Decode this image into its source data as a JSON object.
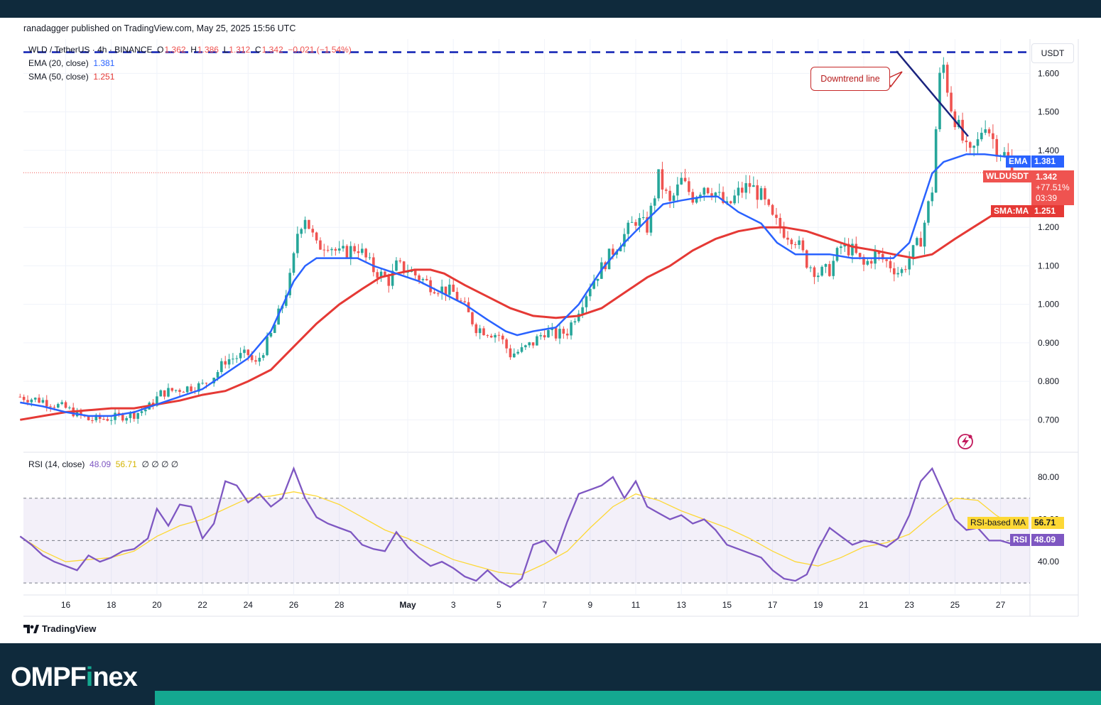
{
  "meta": {
    "published": "ranadagger published on TradingView.com, May 25, 2025 15:56 UTC",
    "brand_left": "OMPF",
    "brand_accent": "i",
    "brand_right": "nex",
    "tv_label": "TradingView"
  },
  "legend": {
    "symbol": "WLD / TetherUS · 4h · BINANCE",
    "o_label": "O",
    "o_val": "1.362",
    "h_label": "H",
    "h_val": "1.386",
    "l_label": "L",
    "l_val": "1.312",
    "c_label": "C",
    "c_val": "1.342",
    "change": "−0.021 (−1.54%)",
    "ema_label": "EMA (20, close)",
    "ema_val": "1.381",
    "sma_label": "SMA (50, close)",
    "sma_val": "1.251",
    "rsi_label": "RSI (14, close)",
    "rsi_val": "48.09",
    "rsi_ma_val": "56.71",
    "rsi_extra": "∅ ∅ ∅ ∅"
  },
  "annotation": {
    "downtrend": "Downtrend line"
  },
  "tags": {
    "currency": "USDT",
    "ema_tag": "EMA",
    "ema_value": "1.381",
    "price_tag": "WLDUSDT",
    "price_value": "1.342",
    "price_change": "+77.51%",
    "countdown": "03:39",
    "sma_tag": "SMA:MA",
    "sma_value": "1.251",
    "rsi_ma_tag": "RSI-based MA",
    "rsi_ma_value": "56.71",
    "rsi_tag": "RSI",
    "rsi_value": "48.09"
  },
  "colors": {
    "up": "#26a69a",
    "down": "#ef5350",
    "ema": "#2962ff",
    "sma": "#e53935",
    "rsi": "#7e57c2",
    "rsi_ma": "#fdd835",
    "resistance": "#0d1fb3",
    "trend": "#1a237e"
  },
  "chart_data": [
    {
      "type": "candlestick",
      "x_ticks": [
        "16",
        "18",
        "20",
        "22",
        "24",
        "26",
        "28",
        "May",
        "3",
        "5",
        "7",
        "9",
        "11",
        "13",
        "15",
        "17",
        "19",
        "21",
        "23",
        "25",
        "27"
      ],
      "y_ticks": [
        "1.600",
        "1.500",
        "1.400",
        "1.200",
        "1.100",
        "1.000",
        "0.900",
        "0.800",
        "0.700"
      ],
      "ylim": [
        0.625,
        1.68
      ],
      "resistance_level": 1.655,
      "current_price": 1.342,
      "price_path": [
        [
          14,
          0.76
        ],
        [
          15,
          0.75
        ],
        [
          16,
          0.73
        ],
        [
          16.5,
          0.715
        ],
        [
          17,
          0.7
        ],
        [
          18,
          0.705
        ],
        [
          18.5,
          0.71
        ],
        [
          19,
          0.715
        ],
        [
          19.6,
          0.73
        ],
        [
          20.2,
          0.77
        ],
        [
          21,
          0.78
        ],
        [
          22,
          0.79
        ],
        [
          22.6,
          0.82
        ],
        [
          23,
          0.855
        ],
        [
          24,
          0.87
        ],
        [
          24.3,
          0.84
        ],
        [
          25,
          0.92
        ],
        [
          25.5,
          1.0
        ],
        [
          25.9,
          1.08
        ],
        [
          26.2,
          1.2
        ],
        [
          26.5,
          1.23
        ],
        [
          27,
          1.15
        ],
        [
          27.5,
          1.16
        ],
        [
          28,
          1.13
        ],
        [
          28.8,
          1.15
        ],
        [
          29.5,
          1.09
        ],
        [
          30.2,
          1.06
        ],
        [
          30.5,
          1.1
        ],
        [
          31,
          1.09
        ],
        [
          32,
          1.05
        ],
        [
          33,
          1.03
        ],
        [
          33.5,
          0.99
        ],
        [
          34,
          0.94
        ],
        [
          35,
          0.92
        ],
        [
          35.5,
          0.87
        ],
        [
          36,
          0.88
        ],
        [
          36.5,
          0.9
        ],
        [
          37,
          0.93
        ],
        [
          37.5,
          0.92
        ],
        [
          38,
          0.93
        ],
        [
          39,
          1.05
        ],
        [
          40,
          1.14
        ],
        [
          41,
          1.22
        ],
        [
          41.5,
          1.2
        ],
        [
          42,
          1.33
        ],
        [
          42.5,
          1.26
        ],
        [
          43,
          1.32
        ],
        [
          43.5,
          1.28
        ],
        [
          44,
          1.31
        ],
        [
          44.5,
          1.29
        ],
        [
          45,
          1.25
        ],
        [
          45.5,
          1.29
        ],
        [
          46,
          1.31
        ],
        [
          46.5,
          1.28
        ],
        [
          47,
          1.22
        ],
        [
          47.5,
          1.19
        ],
        [
          48,
          1.17
        ],
        [
          48.5,
          1.11
        ],
        [
          49,
          1.08
        ],
        [
          49.5,
          1.09
        ],
        [
          50,
          1.15
        ],
        [
          50.5,
          1.14
        ],
        [
          51,
          1.1
        ],
        [
          51.5,
          1.13
        ],
        [
          52,
          1.11
        ],
        [
          52.6,
          1.08
        ],
        [
          53,
          1.12
        ],
        [
          53.5,
          1.17
        ],
        [
          54,
          1.3
        ],
        [
          54.3,
          1.58
        ],
        [
          54.5,
          1.62
        ],
        [
          54.8,
          1.52
        ],
        [
          55.2,
          1.45
        ],
        [
          55.6,
          1.38
        ],
        [
          56,
          1.42
        ],
        [
          56.3,
          1.48
        ],
        [
          56.8,
          1.41
        ],
        [
          57.3,
          1.38
        ],
        [
          57.6,
          1.342
        ]
      ],
      "ema20_path": [
        [
          14,
          0.745
        ],
        [
          15,
          0.735
        ],
        [
          16,
          0.72
        ],
        [
          17,
          0.71
        ],
        [
          18,
          0.71
        ],
        [
          19,
          0.72
        ],
        [
          20,
          0.74
        ],
        [
          21,
          0.76
        ],
        [
          22,
          0.78
        ],
        [
          23,
          0.82
        ],
        [
          24,
          0.86
        ],
        [
          25,
          0.93
        ],
        [
          26,
          1.06
        ],
        [
          26.5,
          1.1
        ],
        [
          27,
          1.12
        ],
        [
          28,
          1.12
        ],
        [
          28.8,
          1.12
        ],
        [
          29.5,
          1.1
        ],
        [
          30.5,
          1.08
        ],
        [
          31.5,
          1.06
        ],
        [
          32.5,
          1.03
        ],
        [
          33.5,
          1.0
        ],
        [
          34.5,
          0.96
        ],
        [
          35.3,
          0.93
        ],
        [
          35.8,
          0.92
        ],
        [
          36.5,
          0.93
        ],
        [
          37.5,
          0.94
        ],
        [
          38.5,
          1.0
        ],
        [
          39.5,
          1.09
        ],
        [
          40.5,
          1.16
        ],
        [
          41.5,
          1.22
        ],
        [
          42.2,
          1.26
        ],
        [
          43,
          1.27
        ],
        [
          44,
          1.28
        ],
        [
          44.6,
          1.28
        ],
        [
          45.5,
          1.24
        ],
        [
          46.5,
          1.21
        ],
        [
          47.2,
          1.16
        ],
        [
          48,
          1.13
        ],
        [
          48.5,
          1.13
        ],
        [
          49.5,
          1.13
        ],
        [
          50.5,
          1.12
        ],
        [
          51.5,
          1.12
        ],
        [
          52.3,
          1.12
        ],
        [
          53,
          1.16
        ],
        [
          53.5,
          1.25
        ],
        [
          54,
          1.34
        ],
        [
          54.5,
          1.37
        ],
        [
          55,
          1.38
        ],
        [
          55.5,
          1.39
        ],
        [
          56.3,
          1.39
        ],
        [
          57,
          1.385
        ],
        [
          57.6,
          1.381
        ]
      ],
      "sma50_path": [
        [
          14,
          0.7
        ],
        [
          15,
          0.71
        ],
        [
          16,
          0.72
        ],
        [
          17,
          0.725
        ],
        [
          18,
          0.73
        ],
        [
          19,
          0.73
        ],
        [
          20,
          0.74
        ],
        [
          21,
          0.75
        ],
        [
          22,
          0.765
        ],
        [
          23,
          0.775
        ],
        [
          24,
          0.8
        ],
        [
          25,
          0.83
        ],
        [
          26,
          0.89
        ],
        [
          27,
          0.95
        ],
        [
          28,
          1.0
        ],
        [
          29,
          1.04
        ],
        [
          29.8,
          1.07
        ],
        [
          30.5,
          1.08
        ],
        [
          31.3,
          1.09
        ],
        [
          32,
          1.09
        ],
        [
          32.6,
          1.08
        ],
        [
          33.5,
          1.05
        ],
        [
          34.5,
          1.02
        ],
        [
          35.5,
          0.99
        ],
        [
          36.5,
          0.97
        ],
        [
          37.5,
          0.965
        ],
        [
          38.5,
          0.97
        ],
        [
          39.5,
          0.99
        ],
        [
          40.5,
          1.03
        ],
        [
          41.5,
          1.07
        ],
        [
          42.5,
          1.1
        ],
        [
          43.5,
          1.14
        ],
        [
          44.5,
          1.17
        ],
        [
          45.5,
          1.19
        ],
        [
          46.5,
          1.2
        ],
        [
          47.5,
          1.2
        ],
        [
          48.5,
          1.19
        ],
        [
          49.5,
          1.17
        ],
        [
          50.5,
          1.15
        ],
        [
          51.5,
          1.14
        ],
        [
          52.3,
          1.13
        ],
        [
          53.2,
          1.12
        ],
        [
          54,
          1.13
        ],
        [
          55,
          1.17
        ],
        [
          55.8,
          1.2
        ],
        [
          56.6,
          1.23
        ],
        [
          57.6,
          1.251
        ]
      ]
    },
    {
      "type": "line",
      "title": "RSI (14, close)",
      "y_ticks": [
        "80.00",
        "60.00",
        "40.00"
      ],
      "ylim": [
        26,
        90
      ],
      "bands": [
        70,
        50,
        30
      ],
      "rsi_path": [
        [
          14,
          52
        ],
        [
          14.5,
          48
        ],
        [
          15,
          43
        ],
        [
          15.5,
          40
        ],
        [
          16,
          38
        ],
        [
          16.5,
          36
        ],
        [
          17,
          43
        ],
        [
          17.5,
          40
        ],
        [
          18,
          42
        ],
        [
          18.5,
          45
        ],
        [
          19,
          46
        ],
        [
          19.6,
          51
        ],
        [
          20,
          65
        ],
        [
          20.5,
          57
        ],
        [
          21,
          67
        ],
        [
          21.5,
          66
        ],
        [
          22,
          51
        ],
        [
          22.5,
          58
        ],
        [
          23,
          78
        ],
        [
          23.5,
          76
        ],
        [
          24,
          68
        ],
        [
          24.5,
          72
        ],
        [
          25,
          66
        ],
        [
          25.5,
          70
        ],
        [
          26,
          84
        ],
        [
          26.5,
          70
        ],
        [
          27,
          61
        ],
        [
          27.5,
          58
        ],
        [
          28,
          56
        ],
        [
          28.5,
          54
        ],
        [
          29,
          48
        ],
        [
          29.5,
          46
        ],
        [
          30,
          45
        ],
        [
          30.5,
          54
        ],
        [
          31,
          47
        ],
        [
          31.5,
          42
        ],
        [
          32,
          38
        ],
        [
          32.5,
          40
        ],
        [
          33,
          37
        ],
        [
          33.5,
          33
        ],
        [
          34,
          31
        ],
        [
          34.5,
          36
        ],
        [
          35,
          31
        ],
        [
          35.5,
          28
        ],
        [
          36,
          32
        ],
        [
          36.5,
          48
        ],
        [
          37,
          50
        ],
        [
          37.5,
          44
        ],
        [
          38,
          59
        ],
        [
          38.5,
          72
        ],
        [
          39,
          74
        ],
        [
          39.5,
          76
        ],
        [
          40,
          80
        ],
        [
          40.5,
          70
        ],
        [
          41,
          78
        ],
        [
          41.5,
          66
        ],
        [
          42,
          63
        ],
        [
          42.5,
          60
        ],
        [
          43,
          62
        ],
        [
          43.5,
          58
        ],
        [
          44,
          60
        ],
        [
          44.5,
          55
        ],
        [
          45,
          48
        ],
        [
          45.5,
          46
        ],
        [
          46,
          44
        ],
        [
          46.5,
          42
        ],
        [
          47,
          36
        ],
        [
          47.5,
          32
        ],
        [
          48,
          31
        ],
        [
          48.5,
          34
        ],
        [
          49,
          46
        ],
        [
          49.5,
          56
        ],
        [
          50,
          52
        ],
        [
          50.5,
          48
        ],
        [
          51,
          50
        ],
        [
          51.5,
          49
        ],
        [
          52,
          47
        ],
        [
          52.5,
          51
        ],
        [
          53,
          62
        ],
        [
          53.5,
          78
        ],
        [
          54,
          84
        ],
        [
          54.5,
          72
        ],
        [
          55,
          60
        ],
        [
          55.5,
          55
        ],
        [
          56,
          56
        ],
        [
          56.5,
          50
        ],
        [
          57,
          50
        ],
        [
          57.6,
          48.09
        ]
      ],
      "rsi_ma_path": [
        [
          14,
          52
        ],
        [
          15,
          45
        ],
        [
          16,
          40
        ],
        [
          17,
          41
        ],
        [
          18,
          42
        ],
        [
          19,
          45
        ],
        [
          20,
          52
        ],
        [
          21,
          57
        ],
        [
          22,
          60
        ],
        [
          23,
          65
        ],
        [
          24,
          70
        ],
        [
          25,
          71
        ],
        [
          26,
          73
        ],
        [
          27,
          71
        ],
        [
          28,
          67
        ],
        [
          29,
          61
        ],
        [
          30,
          55
        ],
        [
          31,
          51
        ],
        [
          32,
          46
        ],
        [
          33,
          41
        ],
        [
          34,
          38
        ],
        [
          35,
          35
        ],
        [
          36,
          34
        ],
        [
          37,
          39
        ],
        [
          38,
          45
        ],
        [
          39,
          56
        ],
        [
          40,
          66
        ],
        [
          41,
          72
        ],
        [
          42,
          69
        ],
        [
          43,
          64
        ],
        [
          44,
          60
        ],
        [
          45,
          56
        ],
        [
          46,
          51
        ],
        [
          47,
          45
        ],
        [
          48,
          40
        ],
        [
          49,
          38
        ],
        [
          50,
          42
        ],
        [
          51,
          47
        ],
        [
          52,
          49
        ],
        [
          53,
          53
        ],
        [
          54,
          62
        ],
        [
          55,
          70
        ],
        [
          56,
          69
        ],
        [
          56.8,
          62
        ],
        [
          57.6,
          56.71
        ]
      ]
    }
  ]
}
